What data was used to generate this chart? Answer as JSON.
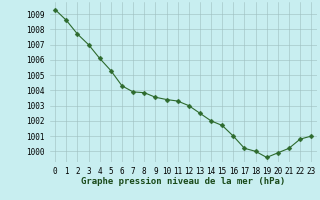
{
  "x": [
    0,
    1,
    2,
    3,
    4,
    5,
    6,
    7,
    8,
    9,
    10,
    11,
    12,
    13,
    14,
    15,
    16,
    17,
    18,
    19,
    20,
    21,
    22,
    23
  ],
  "y": [
    1009.3,
    1008.6,
    1007.7,
    1007.0,
    1006.1,
    1005.3,
    1004.3,
    1003.9,
    1003.85,
    1003.55,
    1003.4,
    1003.3,
    1003.0,
    1002.5,
    1002.0,
    1001.7,
    1001.0,
    1000.2,
    1000.0,
    999.6,
    999.9,
    1000.2,
    1000.8,
    1001.0
  ],
  "line_color": "#2d6a2d",
  "marker": "D",
  "marker_size": 2.5,
  "bg_color": "#c8eef0",
  "grid_color": "#9dbfbf",
  "title": "Graphe pression niveau de la mer (hPa)",
  "ylim": [
    999.3,
    1009.8
  ],
  "xlim": [
    -0.5,
    23.5
  ],
  "yticks": [
    1000,
    1001,
    1002,
    1003,
    1004,
    1005,
    1006,
    1007,
    1008,
    1009
  ],
  "xtick_labels": [
    "0",
    "1",
    "2",
    "3",
    "4",
    "5",
    "6",
    "7",
    "8",
    "9",
    "10",
    "11",
    "12",
    "13",
    "14",
    "15",
    "16",
    "17",
    "18",
    "19",
    "20",
    "21",
    "22",
    "23"
  ],
  "title_fontsize": 6.5,
  "tick_fontsize": 5.5,
  "line_width": 0.8
}
